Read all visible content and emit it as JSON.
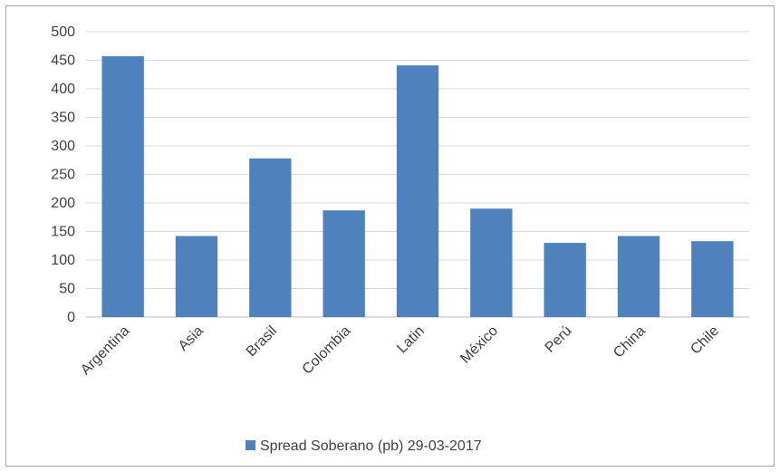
{
  "chart_data": {
    "type": "bar",
    "categories": [
      "Argentina",
      "Asia",
      "Brasil",
      "Colombia",
      "Latin",
      "México",
      "Perú",
      "China",
      "Chile"
    ],
    "series": [
      {
        "name": "Spread Soberano (pb) 29-03-2017",
        "values": [
          457,
          142,
          278,
          187,
          441,
          190,
          130,
          142,
          133
        ],
        "color": "#4f81bd"
      }
    ],
    "ylim": [
      0,
      500
    ],
    "yticks": [
      0,
      50,
      100,
      150,
      200,
      250,
      300,
      350,
      400,
      450,
      500
    ],
    "grid": true,
    "legend_position": "bottom"
  }
}
